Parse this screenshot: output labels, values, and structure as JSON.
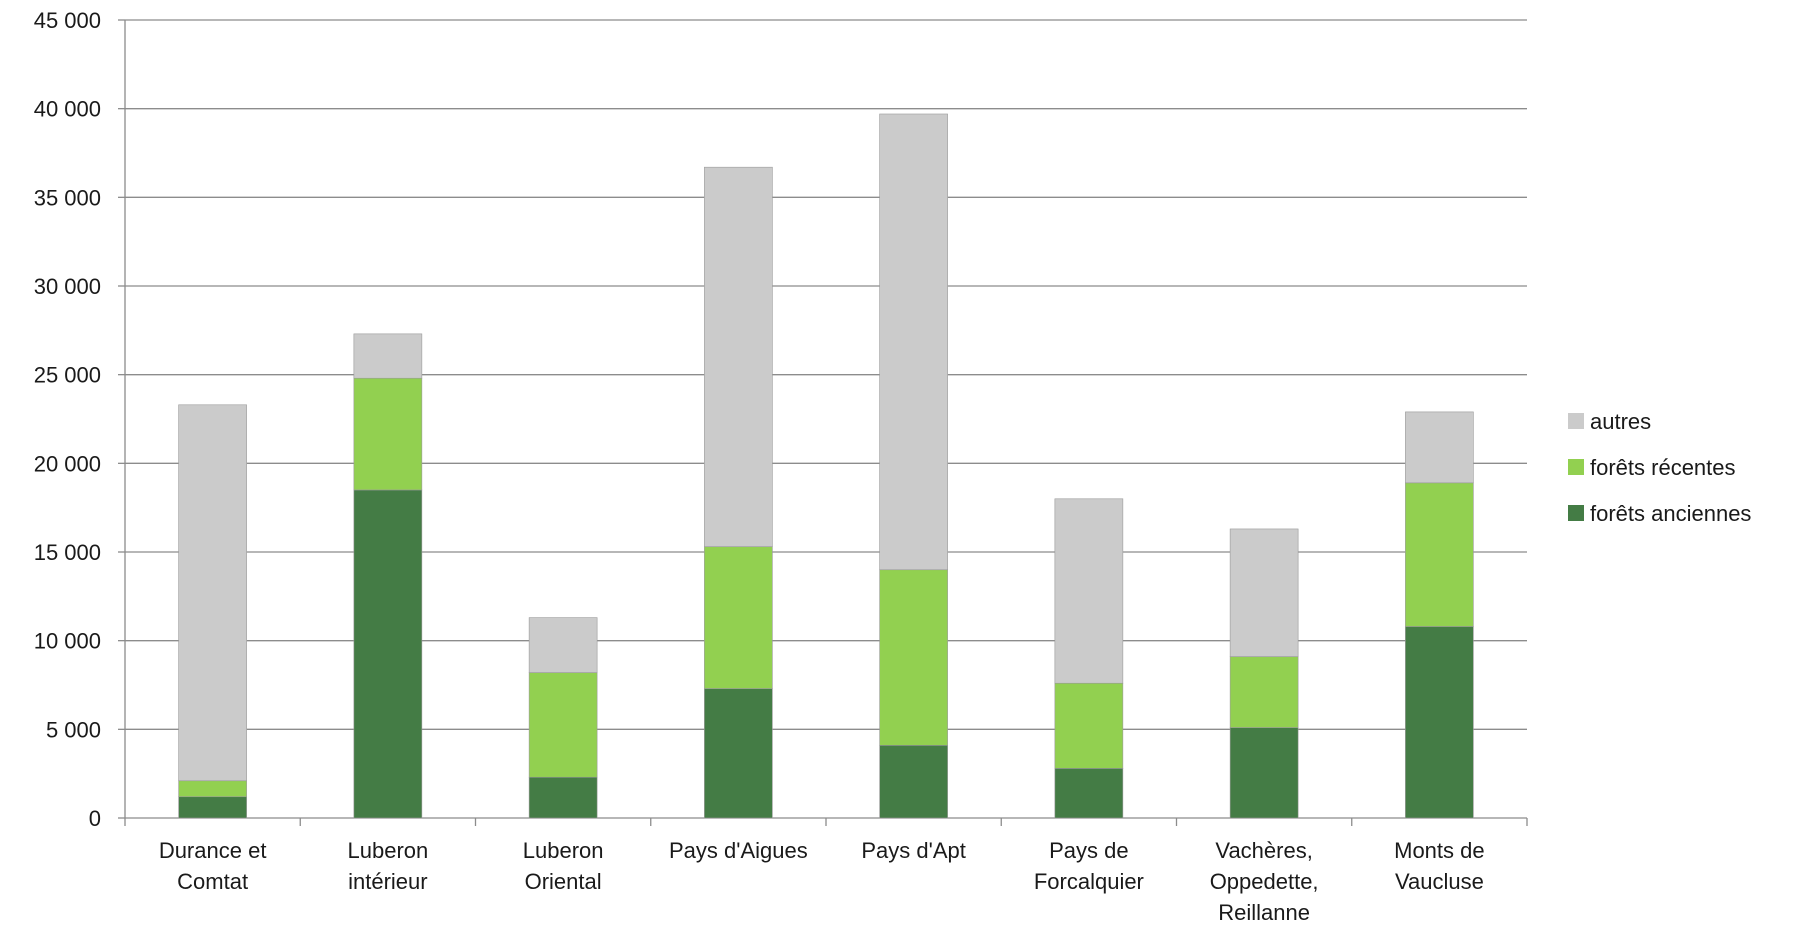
{
  "chart_data": {
    "type": "bar",
    "stacked": true,
    "title": "",
    "xlabel": "",
    "ylabel": "",
    "ylim": [
      0,
      45000
    ],
    "yticks": [
      0,
      5000,
      10000,
      15000,
      20000,
      25000,
      30000,
      35000,
      40000,
      45000
    ],
    "ytick_labels": [
      "0",
      "5 000",
      "10 000",
      "15 000",
      "20 000",
      "25 000",
      "30 000",
      "35 000",
      "40 000",
      "45 000"
    ],
    "grid": true,
    "legend_position": "right",
    "categories": [
      [
        "Durance et",
        "Comtat"
      ],
      [
        "Luberon",
        "intérieur"
      ],
      [
        "Luberon",
        "Oriental"
      ],
      [
        "Pays d'Aigues"
      ],
      [
        "Pays d'Apt"
      ],
      [
        "Pays de",
        "Forcalquier"
      ],
      [
        "Vachères,",
        "Oppedette,",
        "Reillanne"
      ],
      [
        "Monts de",
        "Vaucluse"
      ]
    ],
    "series": [
      {
        "name": "forêts anciennes",
        "color": "#447c45",
        "values": [
          1200,
          18500,
          2300,
          7300,
          4100,
          2800,
          5100,
          10800
        ]
      },
      {
        "name": "forêts récentes",
        "color": "#92d050",
        "values": [
          900,
          6300,
          5900,
          8000,
          9900,
          4800,
          4000,
          8100
        ]
      },
      {
        "name": "autres",
        "color": "#cbcbcb",
        "values": [
          21200,
          2500,
          3100,
          21400,
          25700,
          10400,
          7200,
          4000
        ]
      }
    ],
    "legend_order": [
      "autres",
      "forêts récentes",
      "forêts anciennes"
    ]
  }
}
